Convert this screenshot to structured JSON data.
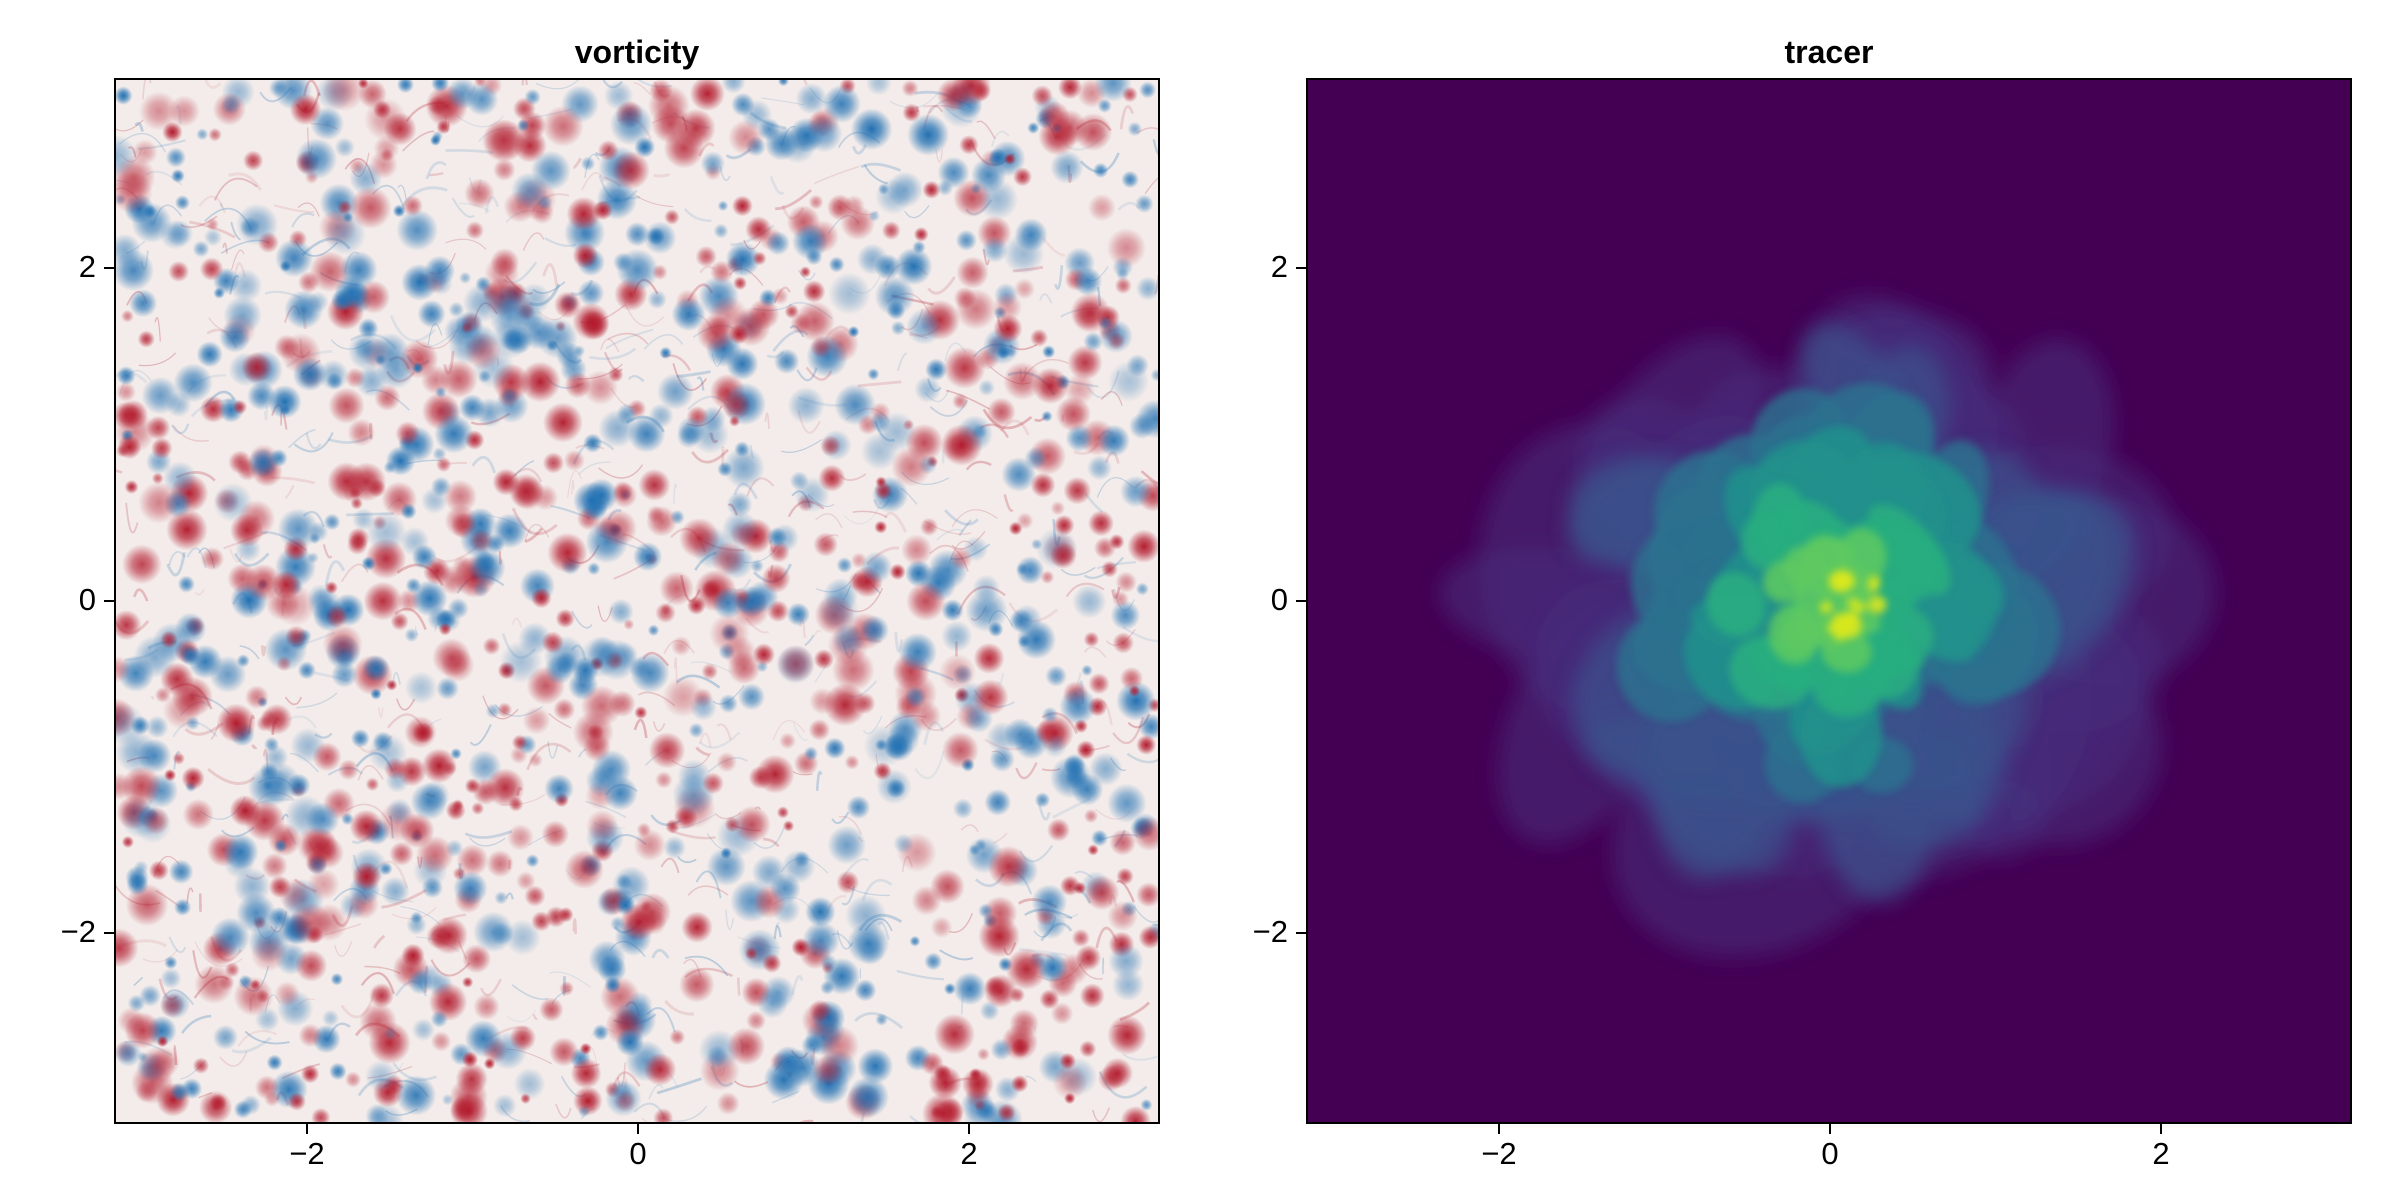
{
  "chart_data": [
    {
      "type": "heatmap",
      "title": "vorticity",
      "xlabel": "",
      "ylabel": "",
      "xlim": [
        -3.1416,
        3.1416
      ],
      "ylim": [
        -3.1416,
        3.1416
      ],
      "x_ticks": [
        -2,
        0,
        2
      ],
      "y_ticks": [
        -2,
        0,
        2
      ],
      "x_tick_labels": [
        "−2",
        "0",
        "2"
      ],
      "y_tick_labels": [
        "−2",
        "0",
        "2"
      ],
      "colormap": "balance (blue-white-red, diverging)",
      "colors": {
        "background": "#f3ecea",
        "positive": "#b2182b",
        "negative": "#1f6fb2"
      },
      "field_description": "many small coherent vortices of both signs scattered across the whole domain",
      "grid": false
    },
    {
      "type": "heatmap",
      "title": "tracer",
      "xlabel": "",
      "ylabel": "",
      "xlim": [
        -3.1416,
        3.1416
      ],
      "ylim": [
        -3.1416,
        3.1416
      ],
      "x_ticks": [
        -2,
        0,
        2
      ],
      "y_ticks": [
        -2,
        0,
        2
      ],
      "x_tick_labels": [
        "−2",
        "0",
        "2"
      ],
      "y_tick_labels": [
        "−2",
        "0",
        "2"
      ],
      "colormap": "viridis",
      "colors": {
        "low": "#440154",
        "mid_low": "#3b518b",
        "mid": "#21918c",
        "mid_high": "#5ec962",
        "high": "#d9e81f"
      },
      "blob_center": [
        0.0,
        0.0
      ],
      "blob_radius": 1.7,
      "grid": false
    }
  ]
}
